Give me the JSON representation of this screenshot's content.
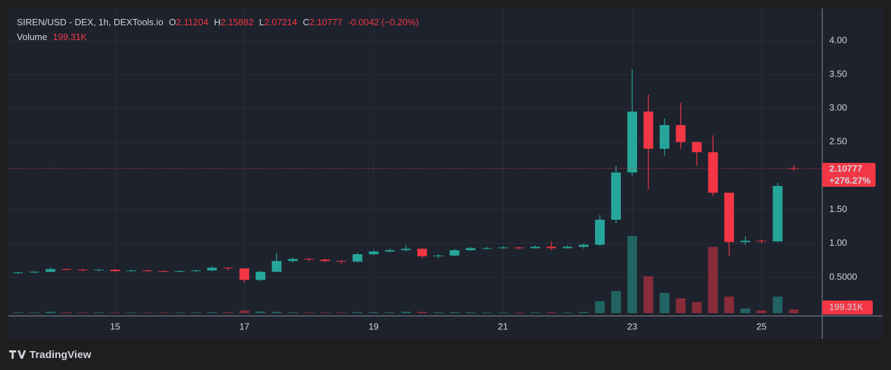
{
  "chart_data": {
    "type": "candlestick",
    "title": "SIREN/USD - DEX, 1h, DEXTools.io",
    "ohlc_labels": [
      "O",
      "H",
      "L",
      "C"
    ],
    "change_label": "-0.0042 (−0.20%)",
    "volume_title": "Volume",
    "volume_label": "199.31K",
    "change_pct_label": "+276.27%",
    "up_color": "#26a69a",
    "down_color": "#f23645",
    "grid": true,
    "x": [
      13.5,
      13.75,
      14,
      14.25,
      14.5,
      14.75,
      15,
      15.25,
      15.5,
      15.75,
      16,
      16.25,
      16.5,
      16.75,
      17,
      17.25,
      17.5,
      17.75,
      18,
      18.25,
      18.5,
      18.75,
      19,
      19.25,
      19.5,
      19.75,
      20,
      20.25,
      20.5,
      20.75,
      21,
      21.25,
      21.5,
      21.75,
      22,
      22.25,
      22.5,
      22.75,
      23,
      23.25,
      23.5,
      23.75,
      24,
      24.25,
      24.5,
      24.75,
      25,
      25.25,
      25.5
    ],
    "open": [
      0.56,
      0.57,
      0.58,
      0.62,
      0.61,
      0.6,
      0.61,
      0.59,
      0.6,
      0.59,
      0.58,
      0.59,
      0.6,
      0.64,
      0.63,
      0.46,
      0.58,
      0.74,
      0.77,
      0.76,
      0.74,
      0.73,
      0.84,
      0.88,
      0.9,
      0.92,
      0.81,
      0.82,
      0.9,
      0.93,
      0.93,
      0.94,
      0.93,
      0.95,
      0.93,
      0.95,
      0.98,
      1.35,
      2.05,
      2.95,
      2.4,
      2.75,
      2.5,
      2.35,
      1.75,
      1.02,
      1.04,
      1.03,
      2.11204
    ],
    "high": [
      0.58,
      0.59,
      0.65,
      0.63,
      0.62,
      0.62,
      0.62,
      0.61,
      0.61,
      0.6,
      0.6,
      0.61,
      0.66,
      0.65,
      0.63,
      0.6,
      0.86,
      0.79,
      0.79,
      0.77,
      0.75,
      0.86,
      0.9,
      0.92,
      0.98,
      0.93,
      0.84,
      0.92,
      0.95,
      0.95,
      0.96,
      0.95,
      0.97,
      1.03,
      0.97,
      1.0,
      1.42,
      2.15,
      3.57,
      3.2,
      2.85,
      3.08,
      2.5,
      2.6,
      1.75,
      1.1,
      1.06,
      1.9,
      2.15882
    ],
    "low": [
      0.55,
      0.56,
      0.57,
      0.6,
      0.59,
      0.59,
      0.58,
      0.58,
      0.58,
      0.57,
      0.57,
      0.58,
      0.59,
      0.6,
      0.42,
      0.44,
      0.57,
      0.72,
      0.74,
      0.72,
      0.7,
      0.72,
      0.83,
      0.87,
      0.88,
      0.78,
      0.78,
      0.81,
      0.89,
      0.91,
      0.92,
      0.91,
      0.92,
      0.9,
      0.92,
      0.92,
      0.96,
      1.3,
      2.0,
      1.8,
      2.3,
      2.4,
      2.15,
      1.7,
      0.82,
      0.98,
      1.0,
      1.02,
      2.07214
    ],
    "close": [
      0.57,
      0.58,
      0.62,
      0.61,
      0.6,
      0.61,
      0.59,
      0.6,
      0.59,
      0.58,
      0.59,
      0.6,
      0.64,
      0.63,
      0.46,
      0.58,
      0.74,
      0.77,
      0.76,
      0.74,
      0.73,
      0.84,
      0.88,
      0.9,
      0.92,
      0.81,
      0.82,
      0.9,
      0.93,
      0.93,
      0.94,
      0.93,
      0.95,
      0.93,
      0.95,
      0.98,
      1.35,
      2.05,
      2.95,
      2.4,
      2.75,
      2.5,
      2.35,
      1.75,
      1.02,
      1.04,
      1.03,
      1.85,
      2.10777
    ],
    "volume": [
      40,
      35,
      80,
      40,
      30,
      35,
      30,
      30,
      25,
      30,
      30,
      35,
      50,
      40,
      140,
      90,
      70,
      40,
      35,
      30,
      30,
      60,
      50,
      45,
      80,
      70,
      50,
      55,
      45,
      35,
      35,
      30,
      40,
      45,
      35,
      60,
      650,
      1200,
      4200,
      2000,
      1100,
      800,
      600,
      3600,
      900,
      250,
      150,
      900,
      199.31
    ],
    "xlim": [
      13.35,
      25.94
    ],
    "xticks": [
      15,
      17,
      19,
      21,
      23,
      25
    ],
    "ylim": [
      -0.073,
      4.476
    ],
    "yticks": [
      {
        "value": 0.5,
        "label": "0.5000"
      },
      {
        "value": 1,
        "label": "1.00"
      },
      {
        "value": 1.5,
        "label": "1.50"
      },
      {
        "value": 2.5,
        "label": "2.50"
      },
      {
        "value": 3,
        "label": "3.00"
      },
      {
        "value": 3.5,
        "label": "3.50"
      },
      {
        "value": 4,
        "label": "4.00"
      }
    ]
  },
  "footer": {
    "brand": "TradingView"
  }
}
